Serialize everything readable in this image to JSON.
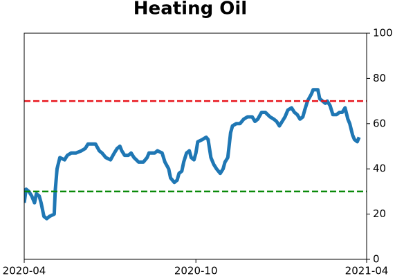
{
  "chart_data": {
    "type": "line",
    "title": "Heating Oil",
    "x": [
      0,
      2,
      5,
      8,
      11,
      13,
      16,
      18,
      21,
      24,
      27,
      32,
      33,
      35,
      38,
      43,
      46,
      50,
      55,
      61,
      65,
      68,
      72,
      76,
      80,
      83,
      87,
      92,
      96,
      99,
      102,
      104,
      107,
      111,
      114,
      117,
      122,
      127,
      131,
      133,
      136,
      139,
      142,
      147,
      150,
      154,
      156,
      160,
      163,
      165,
      168,
      170,
      173,
      176,
      178,
      181,
      183,
      185,
      190,
      194,
      196,
      199,
      202,
      205,
      207,
      209,
      212,
      214,
      217,
      220,
      222,
      226,
      230,
      234,
      238,
      243,
      246,
      249,
      253,
      257,
      262,
      266,
      269,
      272,
      275,
      278,
      281,
      285,
      288,
      291,
      294,
      297,
      299,
      302,
      306,
      308,
      313,
      315,
      318,
      321,
      323,
      326,
      329,
      333,
      336,
      339,
      342,
      345,
      347,
      350,
      352,
      355,
      357
    ],
    "series": [
      {
        "name": "Heating Oil",
        "color": "#1f77b4",
        "values": [
          25,
          31,
          30,
          28,
          25,
          29,
          28,
          25,
          19,
          18,
          19,
          20,
          30,
          40,
          45,
          44,
          46,
          47,
          47,
          48,
          49,
          51,
          51,
          51,
          48,
          47,
          45,
          44,
          47,
          49,
          50,
          48,
          46,
          46,
          47,
          45,
          43,
          43,
          45,
          47,
          47,
          47,
          48,
          47,
          43,
          40,
          36,
          34,
          35,
          38,
          39,
          43,
          47,
          48,
          45,
          44,
          47,
          52,
          53,
          54,
          53,
          45,
          42,
          40,
          39,
          38,
          40,
          43,
          45,
          56,
          59,
          60,
          60,
          62,
          63,
          63,
          61,
          62,
          65,
          65,
          63,
          62,
          61,
          59,
          61,
          63,
          66,
          67,
          65,
          64,
          62,
          63,
          66,
          70,
          73,
          75,
          75,
          71,
          70,
          69,
          70,
          68,
          64,
          64,
          65,
          65,
          67,
          62,
          60,
          55,
          53,
          52,
          54
        ]
      }
    ],
    "xlim": [
      0,
      365
    ],
    "xticks": [
      {
        "value": 0,
        "label": "2020-04"
      },
      {
        "value": 183,
        "label": "2020-10"
      },
      {
        "value": 365,
        "label": "2021-04"
      }
    ],
    "ylim": [
      0,
      100
    ],
    "yticks": [
      0,
      20,
      40,
      60,
      80,
      100
    ],
    "y_axis_side": "right",
    "hlines": [
      {
        "value": 70,
        "color": "#e8141c"
      },
      {
        "value": 30,
        "color": "#0a8a0a"
      }
    ]
  }
}
